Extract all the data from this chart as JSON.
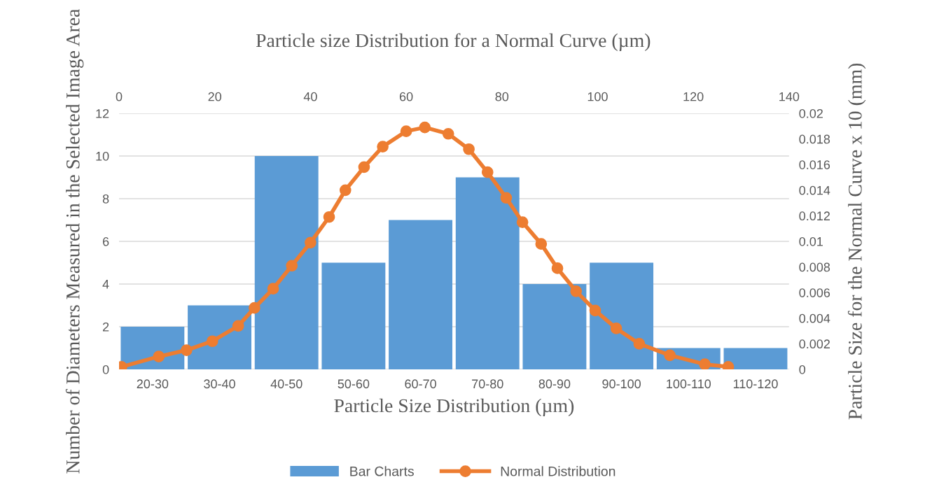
{
  "chart_data": [
    {
      "type": "bar",
      "title": "Particle size Distribution for a Normal Curve (µm)",
      "xlabel": "Particle Size Distribution (µm)",
      "ylabel": "Number of Diameters Measured in the Selected Image Area",
      "categories": [
        "20-30",
        "30-40",
        "40-50",
        "50-60",
        "60-70",
        "70-80",
        "80-90",
        "90-100",
        "100-110",
        "110-120"
      ],
      "series": [
        {
          "name": "Bar Charts",
          "color": "#5b9bd5",
          "values": [
            2,
            3,
            10,
            5,
            7,
            9,
            4,
            5,
            1,
            1
          ]
        }
      ],
      "ylim": [
        0,
        12
      ],
      "yticks": [
        0,
        2,
        4,
        6,
        8,
        10,
        12
      ],
      "grid": "y",
      "legend": "bottom"
    },
    {
      "type": "line",
      "ylabel": "Particle Size for the Normal Curve x 10 (mm)",
      "series": [
        {
          "name": "Normal Distribution",
          "color": "#ed7d31",
          "marker": "circle",
          "line_style": "solid",
          "x": [
            0.5,
            8.3,
            14.1,
            19.5,
            24.9,
            28.3,
            32.2,
            36.1,
            40.0,
            43.9,
            47.3,
            51.2,
            55.1,
            60.0,
            63.9,
            68.8,
            73.1,
            77.0,
            80.9,
            84.3,
            88.2,
            91.6,
            95.5,
            99.5,
            103.9,
            108.7,
            115.1,
            122.4,
            127.3
          ],
          "values": [
            0.0002,
            0.001,
            0.0015,
            0.0022,
            0.0034,
            0.0048,
            0.0063,
            0.0081,
            0.0099,
            0.0119,
            0.014,
            0.0158,
            0.0174,
            0.0186,
            0.0189,
            0.0184,
            0.0172,
            0.0154,
            0.0134,
            0.0115,
            0.0098,
            0.0079,
            0.0061,
            0.0046,
            0.0032,
            0.002,
            0.0011,
            0.0004,
            0.0002
          ]
        }
      ],
      "xlim": [
        0,
        140
      ],
      "xticks": [
        0,
        20,
        40,
        60,
        80,
        100,
        120,
        140
      ],
      "ylim": [
        0,
        0.02
      ],
      "yticks": [
        0,
        0.002,
        0.004,
        0.006,
        0.008,
        0.01,
        0.012,
        0.014,
        0.016,
        0.018,
        0.02
      ],
      "legend": "bottom"
    }
  ]
}
